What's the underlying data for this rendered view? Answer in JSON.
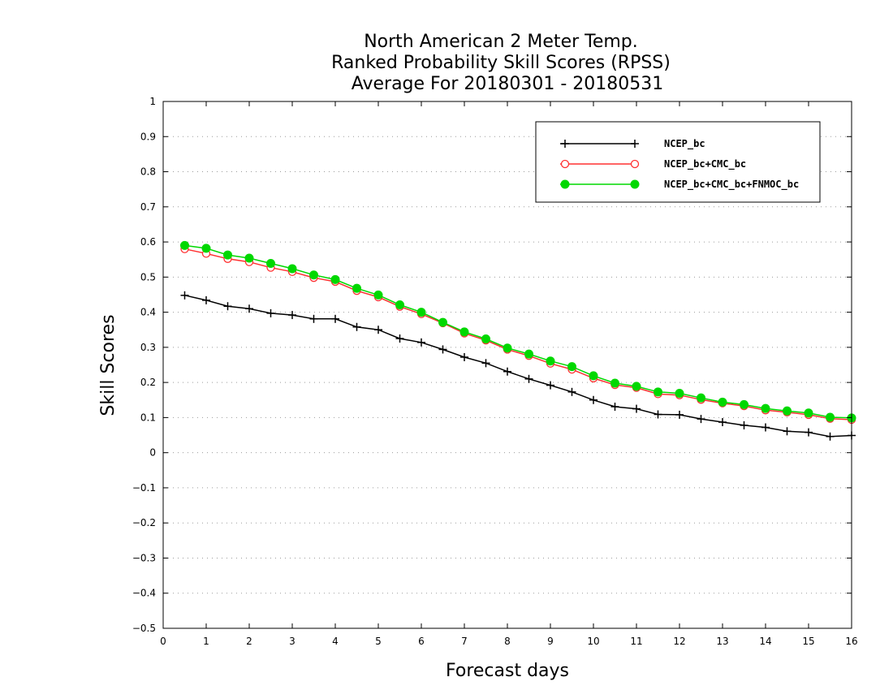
{
  "chart_data": {
    "type": "line",
    "title_lines": [
      "North American 2 Meter Temp.",
      "Ranked Probability Skill Scores (RPSS)",
      "Average For 20180301 - 20180531"
    ],
    "xlabel": "Forecast days",
    "ylabel": "Skill Scores",
    "xlim": [
      0,
      16
    ],
    "ylim": [
      -0.5,
      1
    ],
    "xticks": [
      0,
      1,
      2,
      3,
      4,
      5,
      6,
      7,
      8,
      9,
      10,
      11,
      12,
      13,
      14,
      15,
      16
    ],
    "yticks": [
      -0.5,
      -0.4,
      -0.3,
      -0.2,
      -0.1,
      0,
      0.1,
      0.2,
      0.3,
      0.4,
      0.5,
      0.6,
      0.7,
      0.8,
      0.9,
      1
    ],
    "ytick_labels": [
      "−0.5",
      "−0.4",
      "−0.3",
      "−0.2",
      "−0.1",
      "0",
      "0.1",
      "0.2",
      "0.3",
      "0.4",
      "0.5",
      "0.6",
      "0.7",
      "0.8",
      "0.9",
      "1"
    ],
    "grid": true,
    "legend_position": "top-right",
    "x": [
      0.5,
      1,
      1.5,
      2,
      2.5,
      3,
      3.5,
      4,
      4.5,
      5,
      5.5,
      6,
      6.5,
      7,
      7.5,
      8,
      8.5,
      9,
      9.5,
      10,
      10.5,
      11,
      11.5,
      12,
      12.5,
      13,
      13.5,
      14,
      14.5,
      15,
      15.5,
      16
    ],
    "series": [
      {
        "name": "NCEP_bc",
        "color": "#000000",
        "marker": "plus",
        "values": [
          0.448,
          0.434,
          0.417,
          0.41,
          0.397,
          0.392,
          0.381,
          0.381,
          0.358,
          0.35,
          0.325,
          0.314,
          0.294,
          0.272,
          0.255,
          0.231,
          0.21,
          0.192,
          0.173,
          0.15,
          0.131,
          0.125,
          0.109,
          0.108,
          0.096,
          0.087,
          0.078,
          0.072,
          0.061,
          0.058,
          0.046,
          0.049
        ]
      },
      {
        "name": "NCEP_bc+CMC_bc",
        "color": "#ff3030",
        "marker": "open-circle",
        "values": [
          0.58,
          0.567,
          0.552,
          0.543,
          0.527,
          0.515,
          0.498,
          0.487,
          0.461,
          0.443,
          0.416,
          0.395,
          0.369,
          0.34,
          0.32,
          0.294,
          0.276,
          0.254,
          0.237,
          0.212,
          0.193,
          0.185,
          0.167,
          0.164,
          0.151,
          0.141,
          0.133,
          0.121,
          0.115,
          0.108,
          0.097,
          0.094
        ]
      },
      {
        "name": "NCEP_bc+CMC_bc+FNMOC_bc",
        "color": "#00d800",
        "marker": "filled-circle",
        "values": [
          0.59,
          0.582,
          0.563,
          0.554,
          0.539,
          0.524,
          0.506,
          0.493,
          0.468,
          0.449,
          0.421,
          0.4,
          0.371,
          0.344,
          0.324,
          0.298,
          0.281,
          0.261,
          0.245,
          0.219,
          0.198,
          0.189,
          0.173,
          0.169,
          0.156,
          0.144,
          0.137,
          0.126,
          0.119,
          0.113,
          0.101,
          0.099
        ]
      }
    ]
  }
}
